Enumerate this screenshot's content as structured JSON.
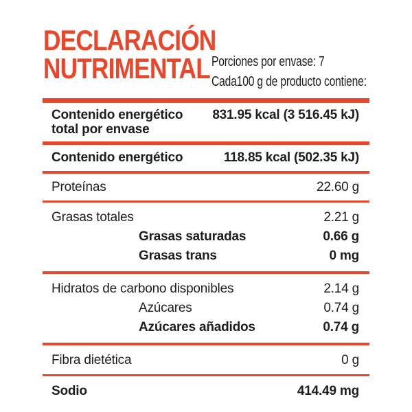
{
  "colors": {
    "accent": "#E8472B",
    "text": "#1D1D1B"
  },
  "header": {
    "title_line1": "DECLARACIÓN",
    "title_line2": "NUTRIMENTAL",
    "servings": "Porciones por envase: 7",
    "basis": "Cada100 g de producto contiene:"
  },
  "table": {
    "rows": [
      {
        "label": "Contenido energético total por envase",
        "value": "831.95 kcal (3 516.45 kJ)"
      },
      {
        "label": "Contenido energético",
        "value": "118.85 kcal (502.35 kJ)"
      },
      {
        "label": "Proteínas",
        "value": "22.60 g"
      },
      {
        "label": "Grasas totales",
        "value": "2.21 g"
      },
      {
        "label": "Grasas saturadas",
        "value": "0.66 g"
      },
      {
        "label": "Grasas trans",
        "value": "0 mg"
      },
      {
        "label": "Hidratos de carbono disponibles",
        "value": "2.14 g"
      },
      {
        "label": "Azúcares",
        "value": "0.74 g"
      },
      {
        "label": "Azúcares añadidos",
        "value": "0.74 g"
      },
      {
        "label": "Fibra dietética",
        "value": "0 g"
      },
      {
        "label": "Sodio",
        "value": "414.49 mg"
      }
    ]
  }
}
